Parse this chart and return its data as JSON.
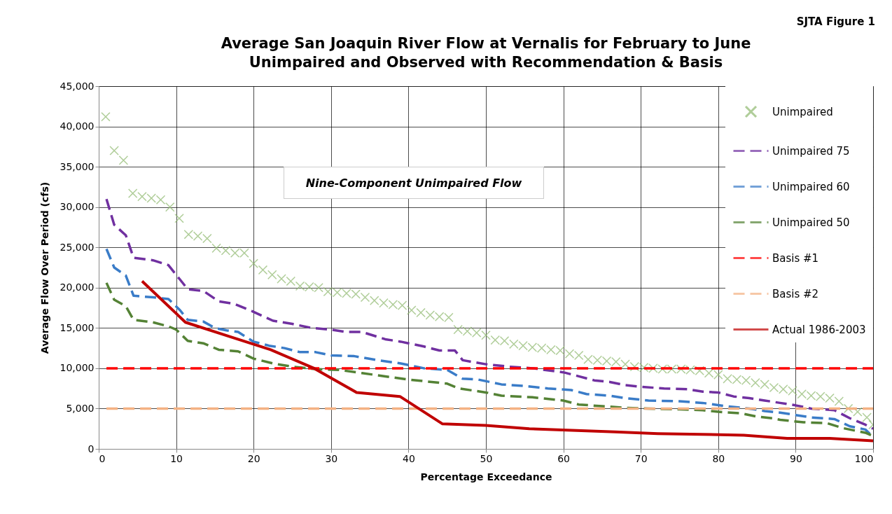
{
  "chart_data": {
    "type": "line",
    "title": "Average San Joaquin River Flow at Vernalis for February to June",
    "subtitle": "Unimpaired and Observed with Recommendation & Basis",
    "xlabel": "Percentage Exceedance",
    "ylabel": "Average Flow Over Period (cfs)",
    "xlim": [
      0,
      100
    ],
    "xticks": [
      0,
      10,
      20,
      30,
      40,
      50,
      60,
      70,
      80,
      90,
      100
    ],
    "ylim": [
      0,
      45000
    ],
    "yticks": [
      0,
      {
        "value": 5000,
        "label": "5,000"
      },
      {
        "value": 10000,
        "label": "10,000"
      },
      {
        "value": 15000,
        "label": "15,000"
      },
      {
        "value": 20000,
        "label": "20,000"
      },
      {
        "value": 25000,
        "label": "25,000"
      },
      {
        "value": 30000,
        "label": "30,000"
      },
      {
        "value": 35000,
        "label": "35,000"
      },
      {
        "value": 40000,
        "label": "40,000"
      },
      {
        "value": 45000,
        "label": "45,000"
      }
    ],
    "grid": true,
    "legend": "top right",
    "annotations": [
      "SJTA Figure 1",
      "Nine-Component Unimpaired Flow"
    ],
    "series": [
      {
        "name": "Unimpaired",
        "type": "scatter",
        "marker": "cross",
        "color": "#8fb96f",
        "x": [
          0.9,
          2,
          3.2,
          4.4,
          5.6,
          6.8,
          8,
          9.2,
          10.4,
          11.6,
          12.8,
          14,
          15.2,
          16.4,
          17.6,
          18.8,
          20,
          21.2,
          22.4,
          23.6,
          24.8,
          26,
          27.2,
          28.4,
          29.6,
          30.8,
          32,
          33.2,
          34.4,
          35.6,
          36.8,
          38,
          39.2,
          40.4,
          41.6,
          42.8,
          44,
          45.2,
          46.4,
          47.6,
          48.8,
          50,
          51.2,
          52.4,
          53.6,
          54.8,
          56,
          57.2,
          58.4,
          59.6,
          60.8,
          62,
          63.2,
          64.4,
          65.6,
          66.8,
          68,
          69.2,
          70.4,
          71.6,
          72.8,
          74,
          75.2,
          76.4,
          77.6,
          78.8,
          80,
          81.2,
          82.4,
          83.6,
          84.8,
          86,
          87.2,
          88.4,
          89.6,
          90.8,
          92,
          93.2,
          94.4,
          95.6,
          96.8,
          98,
          99.2,
          100
        ],
        "values": [
          41200,
          37000,
          35800,
          31700,
          31300,
          31100,
          30900,
          30000,
          28600,
          26600,
          26400,
          26100,
          24900,
          24600,
          24300,
          24300,
          23000,
          22200,
          21600,
          21100,
          20800,
          20200,
          20100,
          20000,
          19500,
          19400,
          19300,
          19200,
          18800,
          18400,
          18100,
          17900,
          17800,
          17200,
          16900,
          16600,
          16400,
          16300,
          14800,
          14600,
          14400,
          14100,
          13500,
          13400,
          13000,
          12800,
          12600,
          12500,
          12300,
          12200,
          11800,
          11600,
          11100,
          11000,
          10900,
          10800,
          10500,
          10200,
          10100,
          10000,
          9900,
          9900,
          9900,
          9800,
          9700,
          9400,
          9200,
          8700,
          8600,
          8500,
          8200,
          8000,
          7600,
          7400,
          7200,
          6800,
          6600,
          6500,
          6300,
          5900,
          5000,
          4600,
          3900,
          3000
        ]
      },
      {
        "name": "Unimpaired 75",
        "type": "line",
        "line_style": "dashed",
        "color": "#7030a0",
        "x": [
          1,
          2,
          3.5,
          4.5,
          7,
          9,
          10.5,
          11.5,
          13.5,
          15.5,
          17.5,
          20,
          22.5,
          25,
          27.5,
          30,
          32,
          34,
          37,
          39,
          42,
          44,
          46,
          47,
          50,
          53,
          56,
          60,
          62,
          64,
          66,
          68,
          70,
          73,
          76,
          78,
          80,
          82,
          84,
          86,
          88,
          90,
          92,
          95,
          97,
          99,
          100
        ],
        "values": [
          31000,
          27800,
          26500,
          23700,
          23400,
          22800,
          21000,
          19800,
          19600,
          18300,
          18000,
          17000,
          15900,
          15500,
          15000,
          14800,
          14500,
          14500,
          13600,
          13300,
          12700,
          12200,
          12200,
          11000,
          10500,
          10200,
          10000,
          9500,
          9000,
          8500,
          8300,
          7900,
          7700,
          7500,
          7400,
          7100,
          7000,
          6500,
          6300,
          6000,
          5700,
          5400,
          5000,
          4800,
          3800,
          3000,
          2500
        ]
      },
      {
        "name": "Unimpaired 60",
        "type": "line",
        "line_style": "dashed",
        "color": "#3a7cc8",
        "x": [
          1,
          2,
          3.5,
          4.5,
          7,
          9,
          10.5,
          11.5,
          13.5,
          15,
          16.5,
          18,
          20,
          22,
          24,
          26,
          28,
          30,
          33,
          36,
          39,
          42,
          45,
          47,
          49,
          52,
          55,
          58,
          61,
          63,
          66,
          68,
          71,
          75,
          78,
          81,
          84,
          86,
          88,
          90,
          92,
          95,
          97,
          99,
          100
        ],
        "values": [
          24800,
          22500,
          21500,
          19000,
          18800,
          18600,
          17200,
          16000,
          15800,
          15000,
          14700,
          14500,
          13300,
          12800,
          12500,
          12000,
          12000,
          11600,
          11500,
          11000,
          10600,
          10000,
          9800,
          8700,
          8600,
          8000,
          7800,
          7500,
          7300,
          6800,
          6600,
          6300,
          6000,
          5900,
          5700,
          5300,
          5000,
          4700,
          4500,
          4200,
          3900,
          3700,
          2800,
          2400,
          1500
        ]
      },
      {
        "name": "Unimpaired 50",
        "type": "line",
        "line_style": "dashed",
        "color": "#548235",
        "x": [
          1,
          2,
          3.5,
          4.5,
          7,
          9,
          10,
          11.5,
          13.5,
          15.5,
          18,
          20,
          22.5,
          25,
          28,
          31,
          34,
          37,
          40,
          43,
          45,
          46.5,
          50,
          52,
          56,
          60,
          62,
          65,
          68,
          71,
          75,
          78,
          80,
          83,
          85,
          87,
          88,
          91,
          94,
          96,
          99,
          100
        ],
        "values": [
          20600,
          18500,
          17700,
          16000,
          15700,
          15200,
          14800,
          13400,
          13100,
          12300,
          12100,
          11200,
          10600,
          10200,
          9900,
          9800,
          9400,
          9000,
          8600,
          8300,
          8100,
          7500,
          7000,
          6600,
          6400,
          6000,
          5500,
          5300,
          5100,
          5000,
          4900,
          4800,
          4600,
          4400,
          4000,
          3800,
          3600,
          3300,
          3200,
          2600,
          2000,
          1600
        ]
      },
      {
        "name": "Basis #1",
        "type": "line",
        "line_style": "dashed",
        "color": "#ff0000",
        "x": [
          1,
          100
        ],
        "values": [
          10000,
          10000
        ]
      },
      {
        "name": "Basis #2",
        "type": "line",
        "line_style": "dashed",
        "color": "#f4b183",
        "x": [
          1,
          100
        ],
        "values": [
          5000,
          5000
        ]
      },
      {
        "name": "Actual 1986-2003",
        "type": "line",
        "line_style": "solid",
        "color": "#c00000",
        "x": [
          5.6,
          11.2,
          16.7,
          22.2,
          27.8,
          33.3,
          38.9,
          44.4,
          50,
          55.6,
          61.1,
          66.7,
          72.2,
          77.8,
          83.3,
          88.9,
          94.4,
          100
        ],
        "values": [
          20800,
          15700,
          14000,
          12300,
          10000,
          7000,
          6500,
          3100,
          2900,
          2500,
          2300,
          2100,
          1900,
          1800,
          1700,
          1300,
          1300,
          1000
        ]
      }
    ]
  }
}
